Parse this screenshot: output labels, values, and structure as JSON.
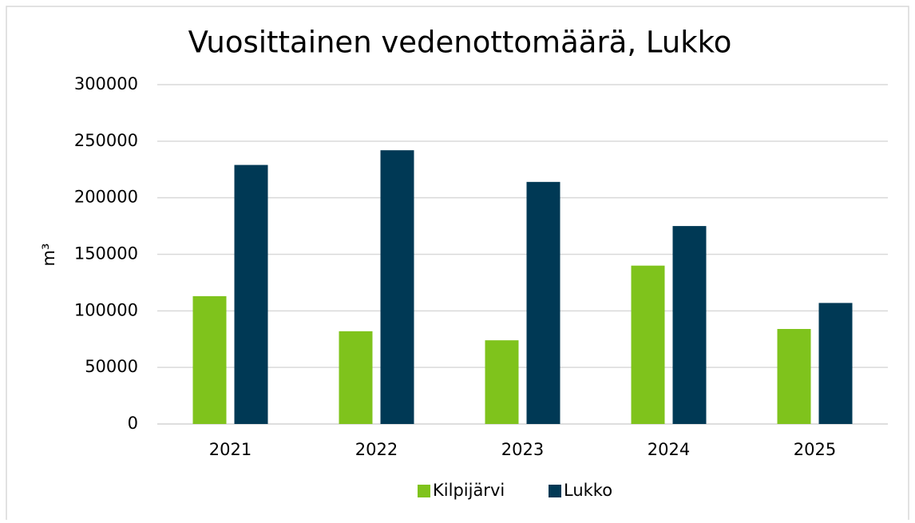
{
  "chart_data": {
    "type": "bar",
    "title": "Vuosittainen vedenottomäärä, Lukko",
    "y_label": "m³",
    "categories": [
      "2021",
      "2022",
      "2023",
      "2024",
      "2025"
    ],
    "series": [
      {
        "name": "Kilpijärvi",
        "color": "#7fc31c",
        "values": [
          113000,
          82000,
          74000,
          140000,
          84000
        ]
      },
      {
        "name": "Lukko",
        "color": "#003955",
        "values": [
          229000,
          242000,
          214000,
          175000,
          107000
        ]
      }
    ],
    "ylim": [
      0,
      300000
    ],
    "yticks": [
      0,
      50000,
      100000,
      150000,
      200000,
      250000,
      300000
    ],
    "grid": true,
    "legend": "bottom"
  }
}
